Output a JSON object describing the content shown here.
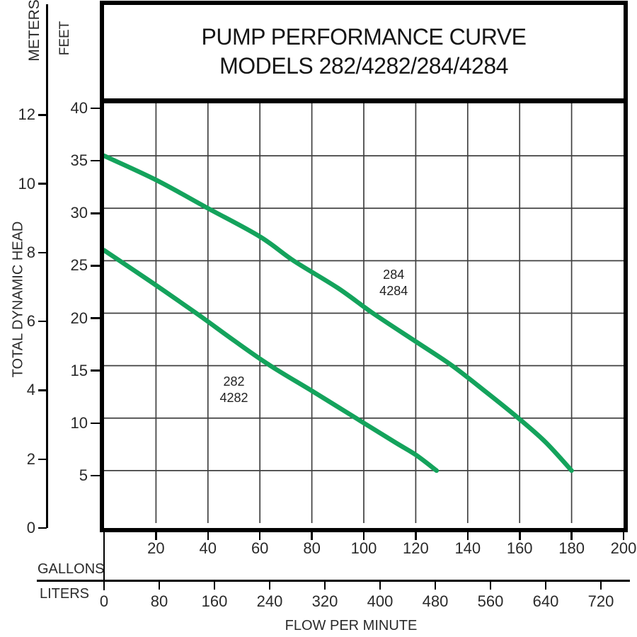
{
  "title": {
    "line1": "PUMP PERFORMANCE CURVE",
    "line2": "MODELS 282/4282/284/4284"
  },
  "axes": {
    "left": {
      "axis_title": "TOTAL DYNAMIC HEAD",
      "meters_unit": "METERS",
      "feet_unit": "FEET",
      "meters_ticks": [
        12,
        10,
        8,
        6,
        4,
        2,
        0
      ],
      "feet_ticks": [
        40,
        35,
        30,
        25,
        20,
        15,
        10,
        5
      ]
    },
    "bottom": {
      "axis_title": "FLOW PER MINUTE",
      "gallons_unit": "GALLONS",
      "liters_unit": "LITERS",
      "gallons_ticks": [
        20,
        40,
        60,
        80,
        100,
        120,
        140,
        160,
        180,
        200
      ],
      "liters_ticks": [
        0,
        80,
        160,
        240,
        320,
        400,
        480,
        560,
        640,
        720
      ]
    }
  },
  "colors": {
    "curve": "#14a35c",
    "grid": "#404040",
    "frame": "#000000",
    "text": "#1c1c1c",
    "background": "#ffffff"
  },
  "chart_data": {
    "type": "line",
    "title": "PUMP PERFORMANCE CURVE MODELS 282/4282/284/4284",
    "xlabel": "FLOW PER MINUTE",
    "ylabel": "TOTAL DYNAMIC HEAD",
    "grid": true,
    "x_axis": {
      "units": [
        "GALLONS",
        "LITERS"
      ],
      "gallons_range": [
        0,
        200
      ],
      "gallons_ticks": [
        20,
        40,
        60,
        80,
        100,
        120,
        140,
        160,
        180,
        200
      ],
      "liters_ticks": [
        0,
        80,
        160,
        240,
        320,
        400,
        480,
        560,
        640,
        720
      ]
    },
    "y_axis": {
      "units": [
        "FEET",
        "METERS"
      ],
      "feet_range": [
        0,
        40
      ],
      "feet_ticks": [
        5,
        10,
        15,
        20,
        25,
        30,
        35,
        40
      ],
      "meters_ticks": [
        0,
        2,
        4,
        6,
        8,
        10,
        12
      ]
    },
    "series": [
      {
        "name": "284/4284",
        "label_lines": [
          "284",
          "4284"
        ],
        "label_at_gallons_feet": [
          111.5,
          22.9
        ],
        "points_gallons_feet": [
          [
            0,
            35
          ],
          [
            20,
            32.7
          ],
          [
            40,
            30
          ],
          [
            60,
            27.3
          ],
          [
            73,
            25
          ],
          [
            90,
            22.4
          ],
          [
            103.5,
            20
          ],
          [
            120,
            17.3
          ],
          [
            134,
            15
          ],
          [
            147,
            12.5
          ],
          [
            159.5,
            10
          ],
          [
            170,
            7.7
          ],
          [
            180,
            5
          ]
        ]
      },
      {
        "name": "282/4282",
        "label_lines": [
          "282",
          "4282"
        ],
        "label_at_gallons_feet": [
          50,
          12.7
        ],
        "points_gallons_feet": [
          [
            0,
            26
          ],
          [
            18,
            23
          ],
          [
            35.5,
            20
          ],
          [
            50,
            17.4
          ],
          [
            64,
            15
          ],
          [
            80,
            12.6
          ],
          [
            97,
            10
          ],
          [
            112,
            7.7
          ],
          [
            120,
            6.5
          ],
          [
            128,
            5
          ]
        ]
      }
    ]
  }
}
